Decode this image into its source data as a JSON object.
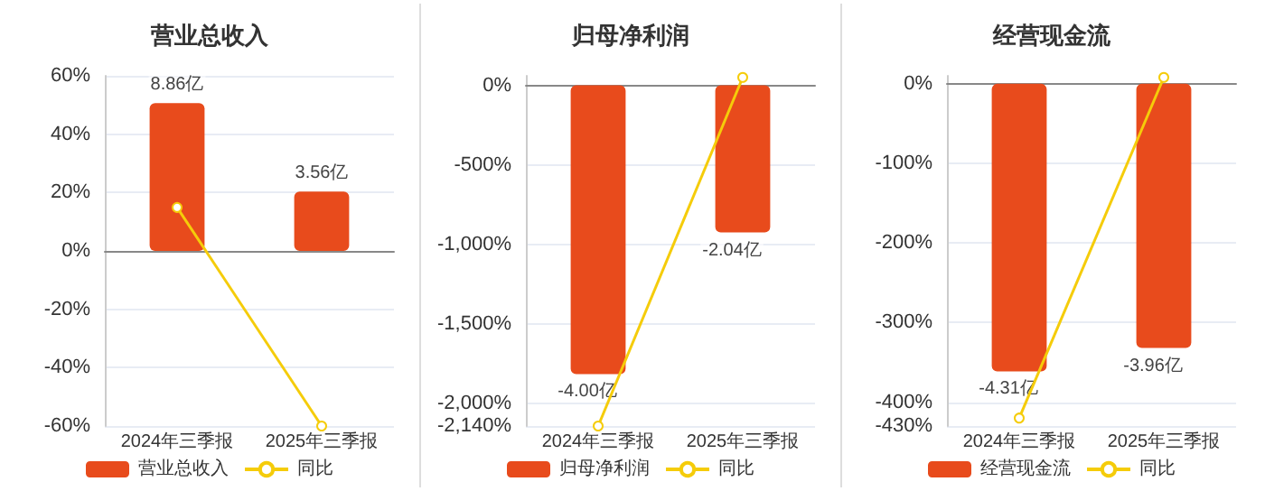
{
  "chart_data": [
    {
      "type": "bar",
      "title": "营业总收入",
      "categories": [
        "2024年三季报",
        "2025年三季报"
      ],
      "series": [
        {
          "name": "营业总收入",
          "axis": "y2",
          "color": "#e84b1c",
          "values": [
            8.86,
            3.56
          ],
          "value_labels": [
            "8.86亿",
            "3.56亿"
          ]
        },
        {
          "name": "同比",
          "type": "line",
          "color": "#f5cc0a",
          "values": [
            14.9,
            -60
          ]
        }
      ],
      "ylim": [
        -60,
        60
      ],
      "y2lim": [
        -10.5,
        10.5
      ],
      "yticks": [
        {
          "value": -60,
          "label": "-60%"
        },
        {
          "value": -40,
          "label": "-40%"
        },
        {
          "value": -20,
          "label": "-20%"
        },
        {
          "value": 0,
          "label": "0%"
        },
        {
          "value": 20,
          "label": "20%"
        },
        {
          "value": 40,
          "label": "40%"
        },
        {
          "value": 60,
          "label": "60%"
        }
      ],
      "grid": "y",
      "legend": "bottom",
      "marker": "circle"
    },
    {
      "type": "bar",
      "title": "归母净利润",
      "categories": [
        "2024年三季报",
        "2025年三季报"
      ],
      "series": [
        {
          "name": "归母净利润",
          "axis": "y2",
          "color": "#e84b1c",
          "values": [
            -4.0,
            -2.04
          ],
          "value_labels": [
            "-4.00亿",
            "-2.04亿"
          ]
        },
        {
          "name": "同比",
          "type": "line",
          "color": "#f5cc0a",
          "values": [
            -2140,
            50
          ]
        }
      ],
      "ylim": [
        -2140,
        60
      ],
      "y2lim": [
        -4.72,
        0.13
      ],
      "yticks": [
        {
          "value": -2140,
          "label": "-2,140%"
        },
        {
          "value": -2000,
          "label": "-2,000%"
        },
        {
          "value": -1500,
          "label": "-1,500%"
        },
        {
          "value": -1000,
          "label": "-1,000%"
        },
        {
          "value": -500,
          "label": "-500%"
        },
        {
          "value": 0,
          "label": "0%"
        }
      ],
      "grid": "y",
      "legend": "bottom",
      "marker": "circle"
    },
    {
      "type": "bar",
      "title": "经营现金流",
      "categories": [
        "2024年三季报",
        "2025年三季报"
      ],
      "series": [
        {
          "name": "经营现金流",
          "axis": "y2",
          "color": "#e84b1c",
          "values": [
            -4.31,
            -3.96
          ],
          "value_labels": [
            "-4.31亿",
            "-3.96亿"
          ]
        },
        {
          "name": "同比",
          "type": "line",
          "color": "#f5cc0a",
          "values": [
            -420,
            8
          ]
        }
      ],
      "ylim": [
        -430,
        10
      ],
      "y2lim": [
        -5.13,
        0.12
      ],
      "yticks": [
        {
          "value": -430,
          "label": "-430%"
        },
        {
          "value": -400,
          "label": "-400%"
        },
        {
          "value": -300,
          "label": "-300%"
        },
        {
          "value": -200,
          "label": "-200%"
        },
        {
          "value": -100,
          "label": "-100%"
        },
        {
          "value": 0,
          "label": "0%"
        }
      ],
      "grid": "y",
      "legend": "bottom",
      "marker": "circle"
    }
  ]
}
